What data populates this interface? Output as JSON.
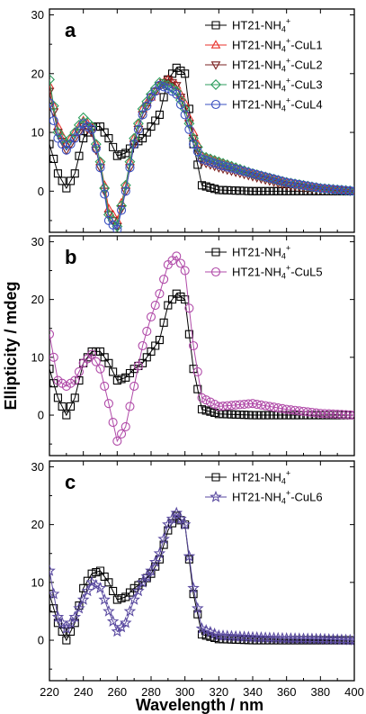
{
  "figure": {
    "xlabel": "Wavelength / nm",
    "ylabel": "Ellipticity / mdeg"
  },
  "chart_data": [
    {
      "type": "line",
      "panel": "a",
      "xlim": [
        220,
        400
      ],
      "ylim": [
        -7,
        31
      ],
      "yticks": [
        0,
        10,
        20,
        30
      ],
      "legend_position": "top-right",
      "series": [
        {
          "name": "HT21-NH4+",
          "marker": "square",
          "color": "#000000",
          "x": [
            220,
            225,
            230,
            235,
            240,
            245,
            250,
            255,
            260,
            265,
            270,
            275,
            280,
            285,
            290,
            295,
            300,
            305,
            310,
            320,
            340,
            360,
            380,
            400
          ],
          "y": [
            8,
            3,
            0.5,
            3,
            9,
            11,
            11,
            9,
            6,
            6.5,
            8,
            9,
            11,
            13,
            19,
            21,
            20,
            8,
            1,
            0.2,
            0,
            0,
            0,
            0
          ]
        },
        {
          "name": "HT21-NH4+-CuL1",
          "marker": "triangle-up",
          "color": "#e8302a",
          "x": [
            220,
            225,
            230,
            235,
            240,
            245,
            250,
            255,
            260,
            265,
            270,
            275,
            280,
            285,
            290,
            295,
            300,
            305,
            310,
            320,
            340,
            360,
            380,
            400
          ],
          "y": [
            18,
            11,
            8,
            10,
            12,
            11,
            5,
            -3,
            -5,
            1,
            9,
            14,
            16,
            18,
            19,
            18,
            15,
            10,
            6,
            5,
            3,
            1.5,
            0.5,
            0
          ]
        },
        {
          "name": "HT21-NH4+-CuL2",
          "marker": "triangle-down",
          "color": "#7a2020",
          "x": [
            220,
            225,
            230,
            235,
            240,
            245,
            250,
            255,
            260,
            265,
            270,
            275,
            280,
            285,
            290,
            295,
            300,
            305,
            310,
            320,
            340,
            360,
            380,
            400
          ],
          "y": [
            17,
            10,
            7,
            9,
            11,
            10,
            4,
            -4,
            -6,
            0,
            8,
            13,
            16,
            18,
            19,
            18,
            14,
            9,
            5,
            4,
            2.5,
            1,
            0.3,
            0
          ]
        },
        {
          "name": "HT21-NH4+-CuL3",
          "marker": "diamond",
          "color": "#2e9e5e",
          "x": [
            220,
            225,
            230,
            235,
            240,
            245,
            250,
            255,
            260,
            265,
            270,
            275,
            280,
            285,
            290,
            295,
            300,
            305,
            310,
            320,
            340,
            360,
            380,
            400
          ],
          "y": [
            19,
            10,
            8,
            10,
            12.5,
            11,
            5,
            -4,
            -6,
            1,
            9,
            14,
            16.5,
            18.5,
            18,
            17,
            14,
            9,
            6,
            5,
            3,
            1.5,
            0.5,
            0
          ]
        },
        {
          "name": "HT21-NH4+-CuL4",
          "marker": "circle",
          "color": "#3a4fc0",
          "x": [
            220,
            225,
            230,
            235,
            240,
            245,
            250,
            255,
            260,
            265,
            270,
            275,
            280,
            285,
            290,
            295,
            300,
            305,
            310,
            320,
            340,
            360,
            380,
            400
          ],
          "y": [
            15,
            9,
            7,
            9,
            11.5,
            10.5,
            4,
            -5,
            -6.5,
            0,
            8,
            13,
            16,
            18,
            17.5,
            16.5,
            13,
            8,
            5.5,
            4.5,
            3,
            1.5,
            0.5,
            0
          ]
        }
      ]
    },
    {
      "type": "line",
      "panel": "b",
      "xlim": [
        220,
        400
      ],
      "ylim": [
        -7,
        31
      ],
      "yticks": [
        0,
        10,
        20,
        30
      ],
      "legend_position": "top-right",
      "series": [
        {
          "name": "HT21-NH4+",
          "marker": "square",
          "color": "#000000",
          "x": [
            220,
            225,
            230,
            235,
            240,
            245,
            250,
            255,
            260,
            265,
            270,
            275,
            280,
            285,
            290,
            295,
            300,
            305,
            310,
            320,
            340,
            360,
            380,
            400
          ],
          "y": [
            8,
            3,
            0,
            3,
            9,
            11,
            11,
            9,
            6,
            6.5,
            8,
            9,
            11,
            13,
            19,
            21,
            20,
            8,
            1,
            0.2,
            0,
            0,
            0,
            0
          ]
        },
        {
          "name": "HT21-NH4+-CuL5",
          "marker": "circle",
          "color": "#b04aa8",
          "x": [
            220,
            225,
            230,
            235,
            240,
            245,
            250,
            255,
            260,
            265,
            270,
            275,
            280,
            285,
            290,
            295,
            300,
            305,
            310,
            320,
            340,
            360,
            380,
            400
          ],
          "y": [
            14,
            6,
            5,
            6,
            9,
            10.5,
            8,
            2,
            -4.5,
            -2,
            5,
            12,
            17,
            21,
            26,
            27.5,
            25,
            12,
            3,
            1.5,
            2,
            1,
            0.3,
            0
          ]
        }
      ]
    },
    {
      "type": "line",
      "panel": "c",
      "xlim": [
        220,
        400
      ],
      "ylim": [
        -7,
        31
      ],
      "yticks": [
        0,
        10,
        20,
        30
      ],
      "legend_position": "top-right",
      "series": [
        {
          "name": "HT21-NH4+",
          "marker": "square",
          "color": "#000000",
          "x": [
            220,
            225,
            230,
            235,
            240,
            245,
            250,
            255,
            260,
            265,
            270,
            275,
            280,
            285,
            290,
            295,
            300,
            305,
            310,
            320,
            340,
            360,
            380,
            400
          ],
          "y": [
            8,
            3,
            0,
            3,
            9,
            11.5,
            12,
            10,
            7,
            7.5,
            9,
            10,
            11.5,
            14,
            19,
            21.5,
            20,
            8,
            1,
            0.2,
            0,
            0,
            0,
            0
          ]
        },
        {
          "name": "HT21-NH4+-CuL6",
          "marker": "star",
          "color": "#5a4aa0",
          "x": [
            220,
            225,
            230,
            235,
            240,
            245,
            250,
            255,
            260,
            265,
            270,
            275,
            280,
            285,
            290,
            295,
            300,
            305,
            310,
            320,
            340,
            360,
            380,
            400
          ],
          "y": [
            12,
            4,
            2,
            4,
            7,
            10,
            9,
            5,
            1.5,
            3,
            7,
            10,
            12,
            15,
            20,
            22,
            20,
            9,
            2,
            0.8,
            0.5,
            0.3,
            0.2,
            0
          ]
        }
      ]
    }
  ]
}
